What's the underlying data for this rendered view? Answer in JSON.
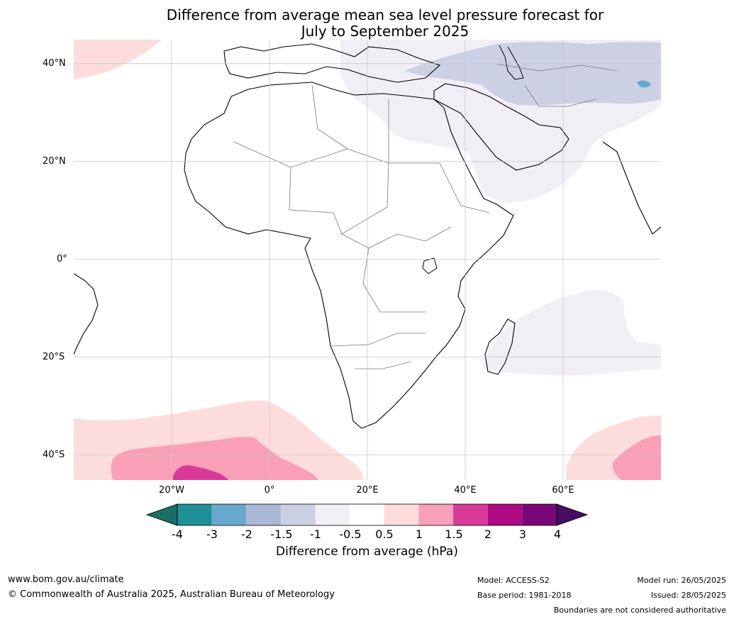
{
  "title": {
    "line1": "Difference from average mean sea level pressure forecast for",
    "line2": "July to September 2025"
  },
  "map": {
    "lat_labels": [
      "40°N",
      "20°N",
      "0°",
      "20°S",
      "40°S"
    ],
    "lon_labels": [
      "20°W",
      "0°",
      "20°E",
      "40°E",
      "60°E"
    ],
    "extent": {
      "lon": [
        -40,
        80
      ],
      "lat": [
        -45,
        45
      ]
    },
    "grid": true
  },
  "colorbar": {
    "title": "Difference from average (hPa)",
    "ticks": [
      "-4",
      "-3",
      "-2",
      "-1.5",
      "-1",
      "-0.5",
      "0.5",
      "1",
      "1.5",
      "2",
      "3",
      "4"
    ],
    "colors": [
      "#1b6e63",
      "#1f9098",
      "#68a8cd",
      "#a9b8d4",
      "#ccd0e4",
      "#f2eef5",
      "#ffffff",
      "#fddcdc",
      "#f99fb8",
      "#d93a98",
      "#ad0a84",
      "#7b0678",
      "#470d62"
    ]
  },
  "footer": {
    "url": "www.bom.gov.au/climate",
    "copyright": "© Commonwealth of Australia 2025, Australian Bureau of Meteorology",
    "model": "Model: ACCESS-S2",
    "base_period": "Base period: 1981-2018",
    "model_run": "Model run: 26/05/2025",
    "issued": "Issued: 28/05/2025",
    "disclaimer": "Boundaries are not considered authoritative"
  }
}
